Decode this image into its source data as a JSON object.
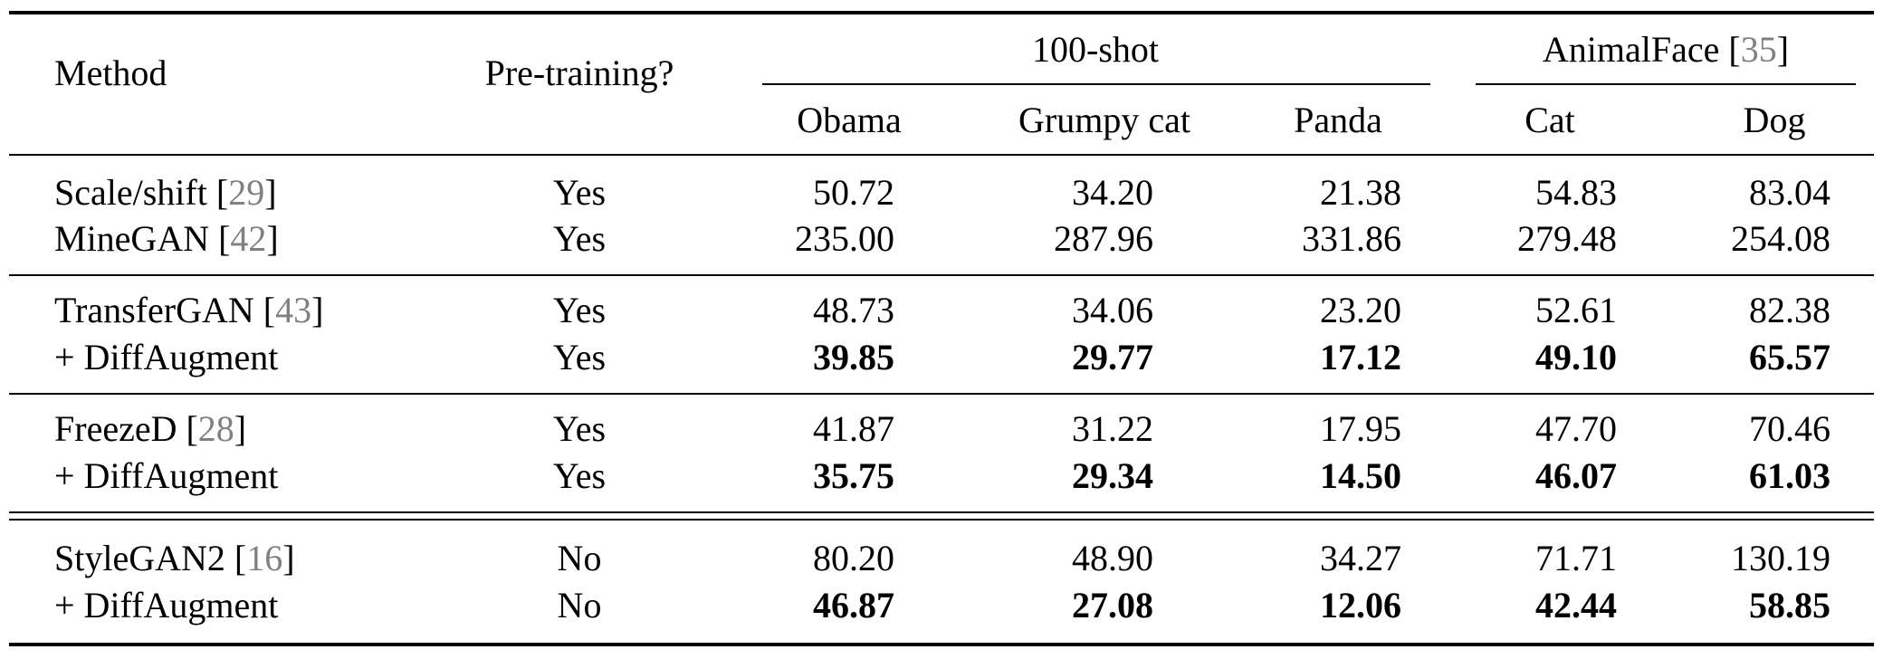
{
  "header": {
    "method": "Method",
    "pretraining": "Pre-training?",
    "group_100shot": "100-shot",
    "group_animalface": "AnimalFace",
    "group_animalface_ref": "35",
    "columns": [
      "Obama",
      "Grumpy cat",
      "Panda",
      "Cat",
      "Dog"
    ]
  },
  "rows": [
    {
      "method": "Scale/shift",
      "ref": "29",
      "pretraining": "Yes",
      "values": [
        "50.72",
        "34.20",
        "21.38",
        "54.83",
        "83.04"
      ],
      "bold": false
    },
    {
      "method": "MineGAN",
      "ref": "42",
      "pretraining": "Yes",
      "values": [
        "235.00",
        "287.96",
        "331.86",
        "279.48",
        "254.08"
      ],
      "bold": false
    },
    {
      "method": "TransferGAN",
      "ref": "43",
      "pretraining": "Yes",
      "values": [
        "48.73",
        "34.06",
        "23.20",
        "52.61",
        "82.38"
      ],
      "bold": false
    },
    {
      "method": "+ DiffAugment",
      "ref": "",
      "pretraining": "Yes",
      "values": [
        "39.85",
        "29.77",
        "17.12",
        "49.10",
        "65.57"
      ],
      "bold": true
    },
    {
      "method": "FreezeD",
      "ref": "28",
      "pretraining": "Yes",
      "values": [
        "41.87",
        "31.22",
        "17.95",
        "47.70",
        "70.46"
      ],
      "bold": false
    },
    {
      "method": "+ DiffAugment",
      "ref": "",
      "pretraining": "Yes",
      "values": [
        "35.75",
        "29.34",
        "14.50",
        "46.07",
        "61.03"
      ],
      "bold": true
    },
    {
      "method": "StyleGAN2",
      "ref": "16",
      "pretraining": "No",
      "values": [
        "80.20",
        "48.90",
        "34.27",
        "71.71",
        "130.19"
      ],
      "bold": false
    },
    {
      "method": "+ DiffAugment",
      "ref": "",
      "pretraining": "No",
      "values": [
        "46.87",
        "27.08",
        "12.06",
        "42.44",
        "58.85"
      ],
      "bold": true
    }
  ]
}
